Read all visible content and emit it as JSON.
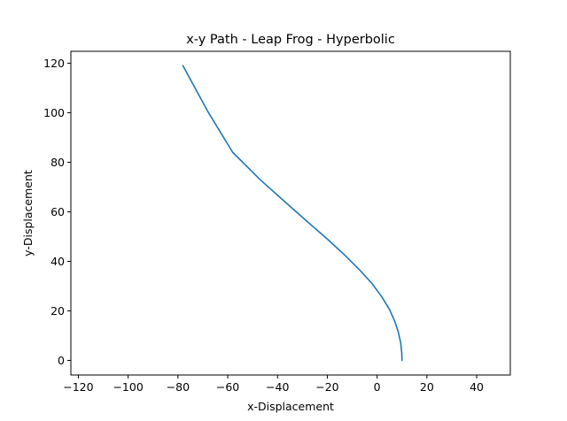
{
  "chart_data": {
    "type": "line",
    "title": "x-y Path - Leap Frog - Hyperbolic",
    "xlabel": "x-Displacement",
    "ylabel": "y-Displacement",
    "xlim": [
      -123,
      53.5
    ],
    "ylim": [
      -5.9,
      124.8
    ],
    "xticks": [
      -120,
      -100,
      -80,
      -60,
      -40,
      -20,
      0,
      20,
      40
    ],
    "yticks": [
      0,
      20,
      40,
      60,
      80,
      100,
      120
    ],
    "grid": false,
    "series": [
      {
        "color": "#1f77b4",
        "x": [
          10,
          9.9,
          9.5,
          8.5,
          7,
          5,
          2,
          -2,
          -7,
          -13,
          -20,
          -28,
          -37,
          -47,
          -58,
          -68,
          -78
        ],
        "y": [
          0,
          3,
          7,
          11.5,
          16,
          20.5,
          25.5,
          31,
          36.5,
          42.5,
          49,
          56,
          64,
          73,
          84,
          100.5,
          119
        ]
      }
    ]
  }
}
